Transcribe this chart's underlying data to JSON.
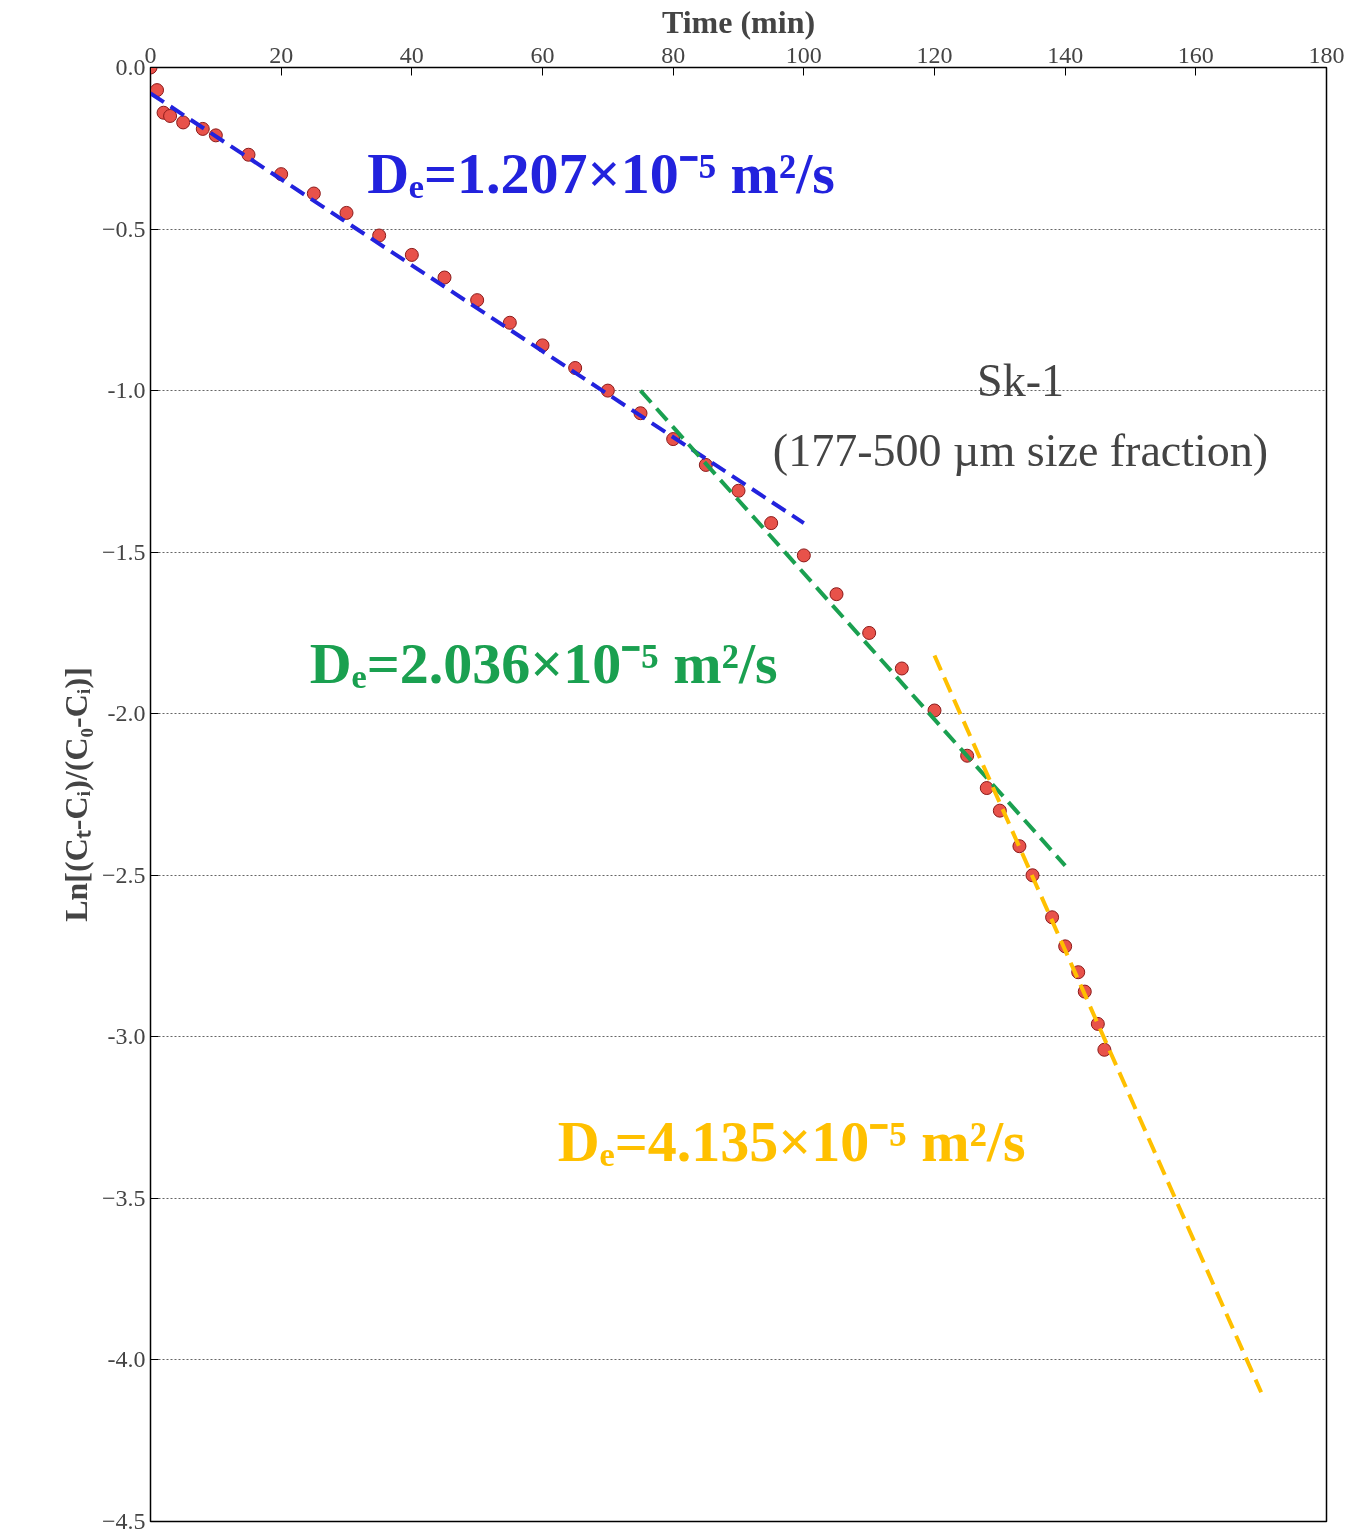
{
  "chart_data": {
    "type": "scatter",
    "xlabel": "Time (min)",
    "ylabel": "Ln[(Cₜ-Cᵢ)/(C₀-Cᵢ)]",
    "xlim": [
      0,
      180
    ],
    "xticks": [
      0,
      20,
      40,
      60,
      80,
      100,
      120,
      140,
      160,
      180
    ],
    "ylim": [
      -4.5,
      0
    ],
    "yticks": [
      {
        "value": 0,
        "label": "0.0"
      },
      -0.5,
      {
        "value": -1,
        "label": "-1.0"
      },
      -1.5,
      {
        "value": -2,
        "label": "-2.0"
      },
      -2.5,
      {
        "value": -3,
        "label": "-3.0"
      },
      -3.5,
      {
        "value": -4,
        "label": "-4.0"
      },
      -4.5
    ],
    "grid": "y",
    "series": [
      {
        "marker": "circle",
        "color": "#e8524a",
        "x": [
          0,
          1,
          2,
          3,
          5,
          8,
          10,
          15,
          20,
          25,
          30,
          35,
          40,
          45,
          50,
          55,
          60,
          65,
          70,
          75,
          80,
          85,
          90,
          95,
          100,
          105,
          110,
          115,
          120,
          125,
          128,
          130,
          133,
          135,
          138,
          140,
          142,
          143,
          145,
          146
        ],
        "values": [
          0,
          -0.07,
          -0.14,
          -0.15,
          -0.17,
          -0.19,
          -0.21,
          -0.27,
          -0.33,
          -0.39,
          -0.45,
          -0.52,
          -0.58,
          -0.65,
          -0.72,
          -0.79,
          -0.86,
          -0.93,
          -1.0,
          -1.07,
          -1.15,
          -1.23,
          -1.31,
          -1.41,
          -1.51,
          -1.63,
          -1.75,
          -1.86,
          -1.99,
          -2.13,
          -2.23,
          -2.3,
          -2.41,
          -2.5,
          -2.63,
          -2.72,
          -2.8,
          -2.86,
          -2.96,
          -3.04
        ]
      },
      {
        "type": "line",
        "name": "Dₑ=1.207×10⁻⁵ m²/s",
        "line_style": "dashed",
        "color": "#2222dd",
        "x": [
          0,
          100
        ],
        "values": [
          -0.08,
          -1.41
        ]
      },
      {
        "type": "line",
        "name": "Dₑ=2.036×10⁻⁵ m²/s",
        "line_style": "dashed",
        "color": "#1aa050",
        "x": [
          75,
          140
        ],
        "values": [
          -1.0,
          -2.47
        ]
      },
      {
        "type": "line",
        "name": "Dₑ=4.135×10⁻⁵ m²/s",
        "line_style": "dashed",
        "color": "#ffc000",
        "x": [
          120,
          170
        ],
        "values": [
          -1.82,
          -4.1
        ]
      }
    ],
    "annotations": [
      "Sk-1",
      "(177-500 µm size fraction)"
    ]
  }
}
